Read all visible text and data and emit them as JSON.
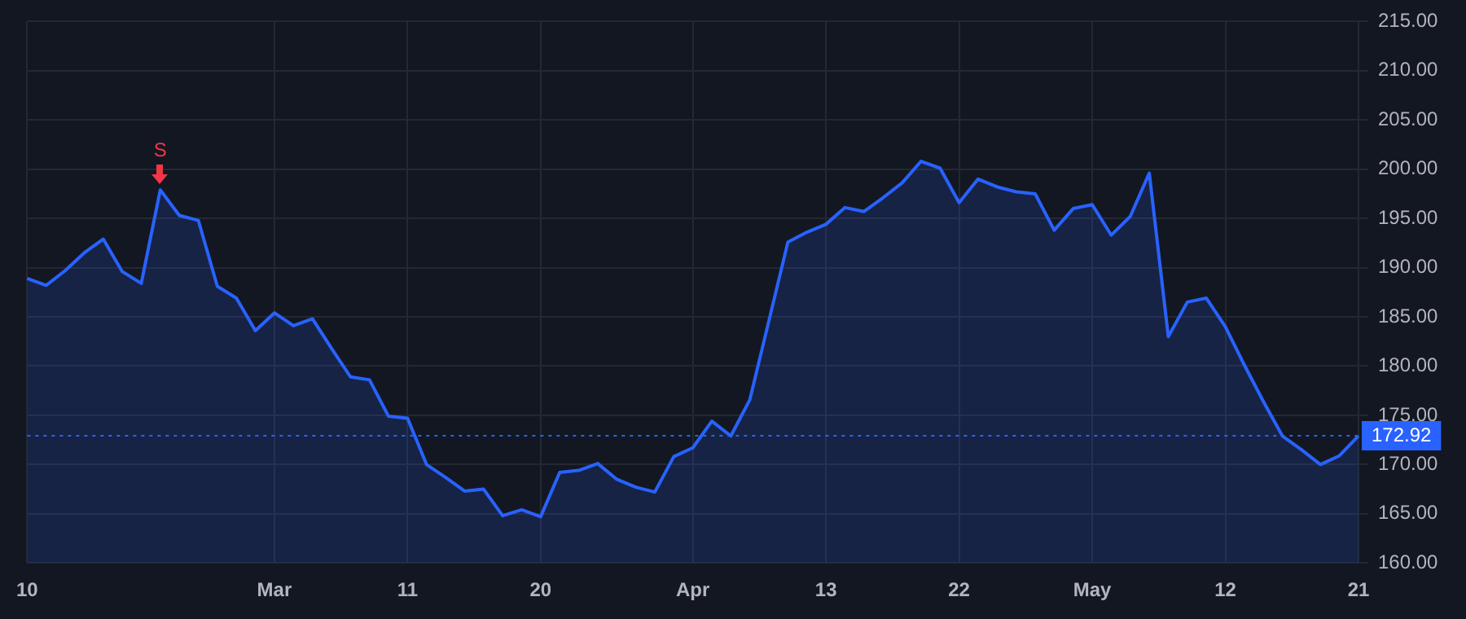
{
  "chart_data": {
    "type": "area",
    "categories": [
      "10",
      null,
      null,
      null,
      null,
      null,
      null,
      null,
      null,
      null,
      null,
      null,
      null,
      "Mar",
      null,
      null,
      null,
      null,
      null,
      null,
      "11",
      null,
      null,
      null,
      null,
      null,
      null,
      "20",
      null,
      null,
      null,
      null,
      null,
      null,
      null,
      "Apr",
      null,
      null,
      null,
      null,
      null,
      null,
      "13",
      null,
      null,
      null,
      null,
      null,
      null,
      "22",
      null,
      null,
      null,
      null,
      null,
      null,
      "May",
      null,
      null,
      null,
      null,
      null,
      null,
      "12",
      null,
      null,
      null,
      null,
      null,
      null,
      "21"
    ],
    "series": [
      {
        "color": "#2962ff",
        "values": [
          188.9,
          188.2,
          189.7,
          191.5,
          192.9,
          189.6,
          188.4,
          197.9,
          195.3,
          194.8,
          188.1,
          186.9,
          183.6,
          185.4,
          184.1,
          184.8,
          181.8,
          178.9,
          178.6,
          174.9,
          174.7,
          170.0,
          168.7,
          167.3,
          167.5,
          164.8,
          165.4,
          164.7,
          169.2,
          169.4,
          170.1,
          168.5,
          167.7,
          167.2,
          170.8,
          171.7,
          174.4,
          172.9,
          176.6,
          184.6,
          192.6,
          193.6,
          194.4,
          196.1,
          195.7,
          197.1,
          198.6,
          200.8,
          200.1,
          196.6,
          199.0,
          198.2,
          197.7,
          197.5,
          193.8,
          196.0,
          196.4,
          193.3,
          195.2,
          199.6,
          183.0,
          186.5,
          186.9,
          184.0,
          180.1,
          176.4,
          172.9,
          171.5,
          170.0,
          170.9,
          172.92
        ]
      }
    ],
    "ylim": [
      160,
      215
    ],
    "yticks": [
      {
        "value": 160,
        "label": "160.00"
      },
      {
        "value": 165,
        "label": "165.00"
      },
      {
        "value": 170,
        "label": "170.00"
      },
      {
        "value": 175,
        "label": "175.00"
      },
      {
        "value": 180,
        "label": "180.00"
      },
      {
        "value": 185,
        "label": "185.00"
      },
      {
        "value": 190,
        "label": "190.00"
      },
      {
        "value": 195,
        "label": "195.00"
      },
      {
        "value": 200,
        "label": "200.00"
      },
      {
        "value": 205,
        "label": "205.00"
      },
      {
        "value": 210,
        "label": "210.00"
      },
      {
        "value": 215,
        "label": "215.00"
      }
    ],
    "ref_lines": [
      {
        "axis": "y",
        "value": 172.92,
        "label": "172.92",
        "color": "#2962ff",
        "line_style": "dotted"
      }
    ],
    "annotations": [
      {
        "text": "S",
        "y": 197.9
      }
    ],
    "grid": true,
    "legend": false,
    "marker": "none",
    "line_style": "solid"
  }
}
